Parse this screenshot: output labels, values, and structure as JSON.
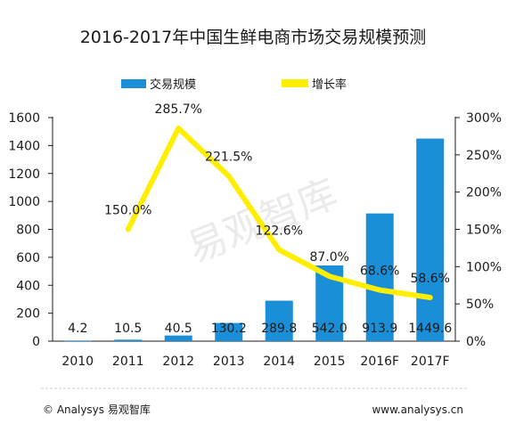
{
  "chart_data": {
    "type": "bar",
    "title": "2016-2017年中国生鲜电商市场交易规模预测",
    "categories": [
      "2010",
      "2011",
      "2012",
      "2013",
      "2014",
      "2015",
      "2016F",
      "2017F"
    ],
    "series": [
      {
        "name": "交易规模",
        "type": "bar",
        "axis": "left",
        "values": [
          4.2,
          10.5,
          40.5,
          130.2,
          289.8,
          542.0,
          913.9,
          1449.6
        ],
        "labels": [
          "4.2",
          "10.5",
          "40.5",
          "130.2",
          "289.8",
          "542.0",
          "913.9",
          "1449.6"
        ],
        "color": "#1a8fd8"
      },
      {
        "name": "增长率",
        "type": "line",
        "axis": "right",
        "values": [
          null,
          150.0,
          285.7,
          221.5,
          122.6,
          87.0,
          68.6,
          58.6
        ],
        "labels": [
          "",
          "150.0%",
          "285.7%",
          "221.5%",
          "122.6%",
          "87.0%",
          "68.6%",
          "58.6%"
        ],
        "color": "#ffee00"
      }
    ],
    "ylim": [
      0,
      1600
    ],
    "y_ticks": [
      "0",
      "200",
      "400",
      "600",
      "800",
      "1000",
      "1200",
      "1400",
      "1600"
    ],
    "y2lim": [
      0,
      300
    ],
    "y2_ticks": [
      "0%",
      "50%",
      "100%",
      "150%",
      "200%",
      "250%",
      "300%"
    ],
    "grid": false,
    "legend_position": "top"
  },
  "watermark": "易观智库",
  "footer": {
    "left": "© Analysys 易观智库",
    "right": "www.analysys.cn"
  }
}
